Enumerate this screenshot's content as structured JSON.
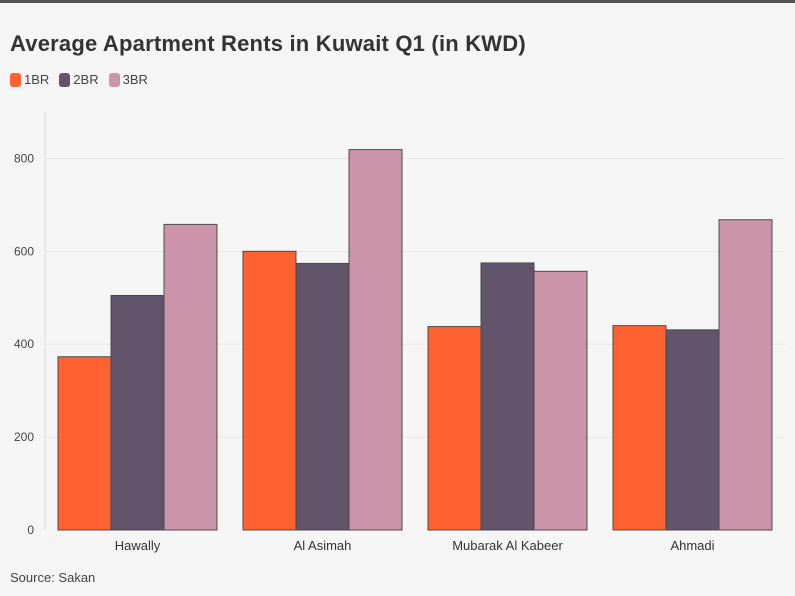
{
  "chart_data": {
    "type": "bar",
    "title": "Average Apartment Rents in Kuwait Q1 (in KWD)",
    "categories": [
      "Hawally",
      "Al Asimah",
      "Mubarak Al Kabeer",
      "Ahmadi"
    ],
    "series": [
      {
        "name": "1BR",
        "color": "#ff6130",
        "values": [
          373,
          600,
          438,
          440
        ]
      },
      {
        "name": "2BR",
        "color": "#62546b",
        "values": [
          505,
          574,
          575,
          431
        ]
      },
      {
        "name": "3BR",
        "color": "#cc94ab",
        "values": [
          658,
          819,
          557,
          668
        ]
      }
    ],
    "ylim": [
      0,
      900
    ],
    "yticks": [
      0,
      200,
      400,
      600,
      800
    ],
    "xlabel": "",
    "ylabel": "",
    "grid": true,
    "legend_position": "top-left"
  },
  "source": "Source: Sakan"
}
